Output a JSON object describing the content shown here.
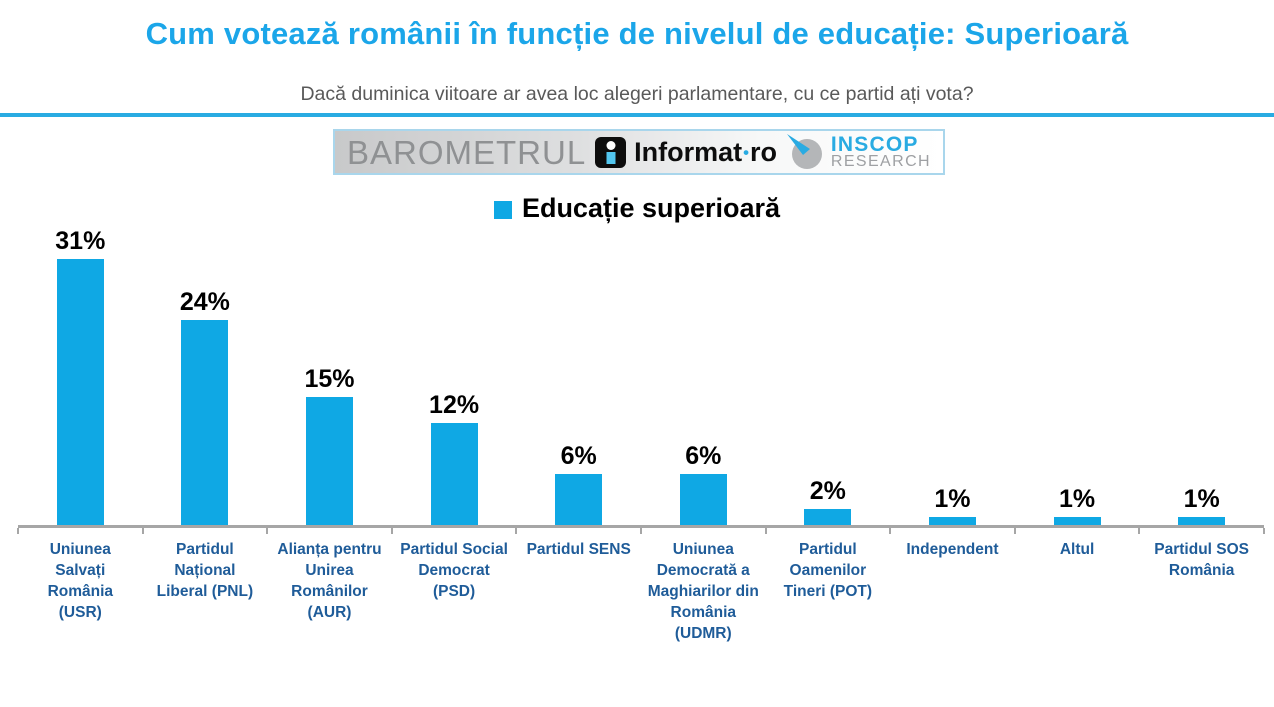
{
  "header": {
    "title": "Cum votează românii în funcție de nivelul de educație: Superioară",
    "subtitle": "Dacă duminica viitoare ar avea loc alegeri parlamentare, cu ce partid ați vota?"
  },
  "brand_bar": {
    "barometrul": "BAROMETRUL",
    "informat": {
      "name": "Informat",
      "dot": "•",
      "tld": "ro"
    },
    "inscop": {
      "line1": "INSCOP",
      "line2": "RESEARCH"
    }
  },
  "legend": {
    "label": "Educație superioară"
  },
  "chart_data": {
    "type": "bar",
    "title": "Cum votează românii în funcție de nivelul de educație: Superioară",
    "subtitle": "Dacă duminica viitoare ar avea loc alegeri parlamentare, cu ce partid ați vota?",
    "legend_entries": [
      "Educație superioară"
    ],
    "legend_position": "top-center",
    "categories": [
      "Uniunea Salvați România (USR)",
      "Partidul Național Liberal (PNL)",
      "Alianța pentru Unirea Românilor (AUR)",
      "Partidul Social Democrat (PSD)",
      "Partidul SENS",
      "Uniunea Democrată a Maghiarilor din România (UDMR)",
      "Partidul Oamenilor Tineri (POT)",
      "Independent",
      "Altul",
      "Partidul SOS România"
    ],
    "values": [
      31,
      24,
      15,
      12,
      6,
      6,
      2,
      1,
      1,
      1
    ],
    "value_labels": [
      "31%",
      "24%",
      "15%",
      "12%",
      "6%",
      "6%",
      "2%",
      "1%",
      "1%",
      "1%"
    ],
    "xlabel": "",
    "ylabel": "",
    "ylim": [
      0,
      35
    ],
    "grid": false,
    "bar_color": "#0FA8E4"
  },
  "colors": {
    "title_blue": "#1BA6E9",
    "divider_blue": "#29ABE2",
    "bar_cyan": "#0FA8E4",
    "category_blue": "#1F5C99",
    "subtitle_gray": "#595959",
    "axis_gray": "#A6A6A6",
    "barometrul_gray": "#8F9193",
    "inscop_blue": "#29ABE2",
    "research_gray": "#9EA0A3",
    "brand_box_border": "#A9D6EC"
  }
}
